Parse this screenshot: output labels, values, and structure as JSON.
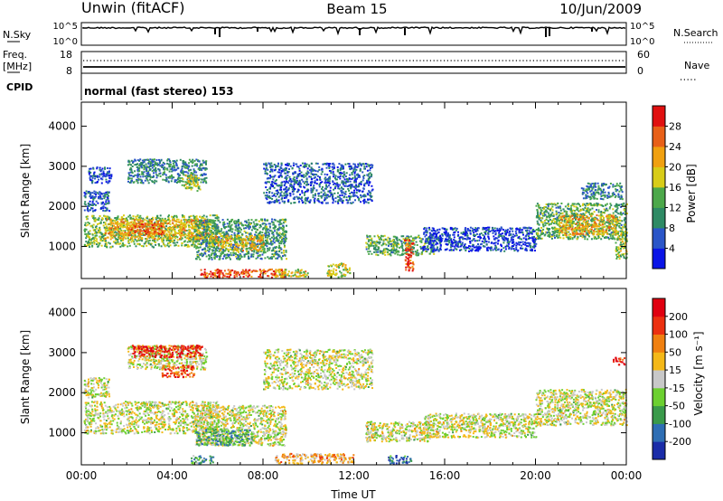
{
  "header": {
    "station": "Unwin (fitACF)",
    "beam": "Beam 15",
    "date": "10/Jun/2009"
  },
  "top_panels": {
    "nsky_label": "N.Sky",
    "nsky_ticks": [
      "10^5",
      "10^0"
    ],
    "nsearch_label": "N.Search",
    "nsearch_ticks": [
      "10^5",
      "10^0"
    ],
    "freq_label": "Freq.",
    "freq_unit": "[MHz]",
    "freq_ticks": [
      "18",
      "8"
    ],
    "nave_label": "Nave",
    "nave_ticks": [
      "60",
      "0"
    ],
    "cpid_label": "CPID",
    "cpid_text": "normal (fast stereo) 153"
  },
  "chart_data": [
    {
      "type": "heatmap",
      "name": "power-panel",
      "ylabel": "Slant Range [km]",
      "yticks": [
        1000,
        2000,
        3000,
        4000
      ],
      "ylim": [
        200,
        4600
      ],
      "xlim": [
        0,
        24
      ],
      "colorbar": {
        "label": "Power [dB]",
        "ticks": [
          "4",
          "8",
          "12",
          "16",
          "20",
          "24",
          "28"
        ],
        "colors": [
          "#0a14e6",
          "#2a55c8",
          "#2e8a64",
          "#4ca84a",
          "#d8cc18",
          "#f0a010",
          "#e86018",
          "#e01010"
        ]
      },
      "regions": [
        {
          "x": [
            0.1,
            6.0
          ],
          "y": [
            1000,
            1800
          ],
          "level": 0.45
        },
        {
          "x": [
            1.0,
            5.6
          ],
          "y": [
            1200,
            1700
          ],
          "level": 0.65
        },
        {
          "x": [
            2.0,
            3.6
          ],
          "y": [
            1300,
            1600
          ],
          "level": 0.8
        },
        {
          "x": [
            0.1,
            1.2
          ],
          "y": [
            1900,
            2400
          ],
          "level": 0.2
        },
        {
          "x": [
            0.3,
            1.3
          ],
          "y": [
            2600,
            3000
          ],
          "level": 0.15
        },
        {
          "x": [
            2.0,
            5.5
          ],
          "y": [
            2600,
            3200
          ],
          "level": 0.3
        },
        {
          "x": [
            4.4,
            5.2
          ],
          "y": [
            2400,
            2800
          ],
          "level": 0.5
        },
        {
          "x": [
            5.0,
            9.0
          ],
          "y": [
            700,
            1700
          ],
          "level": 0.35
        },
        {
          "x": [
            5.6,
            8.0
          ],
          "y": [
            900,
            1300
          ],
          "level": 0.6
        },
        {
          "x": [
            5.2,
            9.0
          ],
          "y": [
            250,
            450
          ],
          "level": 0.85
        },
        {
          "x": [
            8.5,
            10.0
          ],
          "y": [
            250,
            450
          ],
          "level": 0.6
        },
        {
          "x": [
            10.8,
            11.8
          ],
          "y": [
            250,
            600
          ],
          "level": 0.55
        },
        {
          "x": [
            8.0,
            12.8
          ],
          "y": [
            2100,
            3100
          ],
          "level": 0.2
        },
        {
          "x": [
            12.5,
            15.5
          ],
          "y": [
            800,
            1300
          ],
          "level": 0.4
        },
        {
          "x": [
            14.2,
            14.6
          ],
          "y": [
            400,
            1200
          ],
          "level": 0.85
        },
        {
          "x": [
            15.0,
            20.0
          ],
          "y": [
            900,
            1500
          ],
          "level": 0.15
        },
        {
          "x": [
            20.0,
            24.0
          ],
          "y": [
            1200,
            2100
          ],
          "level": 0.4
        },
        {
          "x": [
            21.0,
            23.6
          ],
          "y": [
            1300,
            1800
          ],
          "level": 0.65
        },
        {
          "x": [
            22.0,
            23.8
          ],
          "y": [
            2200,
            2600
          ],
          "level": 0.3
        },
        {
          "x": [
            23.5,
            24.0
          ],
          "y": [
            700,
            1400
          ],
          "level": 0.5
        }
      ]
    },
    {
      "type": "heatmap",
      "name": "velocity-panel",
      "ylabel": "Slant Range [km]",
      "yticks": [
        1000,
        2000,
        3000,
        4000
      ],
      "ylim": [
        200,
        4600
      ],
      "xlim": [
        0,
        24
      ],
      "xticks": [
        "00:00",
        "04:00",
        "08:00",
        "12:00",
        "16:00",
        "20:00",
        "00:00"
      ],
      "xlabel": "Time UT",
      "colorbar": {
        "label": "Velocity [m s⁻¹]",
        "ticks": [
          "200",
          "100",
          "50",
          "15",
          "-15",
          "-50",
          "-100",
          "-200"
        ],
        "colors": [
          "#1a2ca8",
          "#2e6eb4",
          "#3a9a4a",
          "#6cd030",
          "#c8c8c8",
          "#f4b818",
          "#f08010",
          "#ec3010",
          "#e00010"
        ]
      },
      "regions": [
        {
          "x": [
            0.1,
            6.0
          ],
          "y": [
            1000,
            1800
          ],
          "level": 0.5
        },
        {
          "x": [
            0.1,
            1.2
          ],
          "y": [
            1900,
            2400
          ],
          "level": 0.5
        },
        {
          "x": [
            2.0,
            5.5
          ],
          "y": [
            2600,
            3200
          ],
          "level": 0.5
        },
        {
          "x": [
            2.2,
            5.3
          ],
          "y": [
            2900,
            3200
          ],
          "level": 0.9
        },
        {
          "x": [
            3.5,
            5.0
          ],
          "y": [
            2400,
            2700
          ],
          "level": 0.8
        },
        {
          "x": [
            5.0,
            9.0
          ],
          "y": [
            700,
            1700
          ],
          "level": 0.5
        },
        {
          "x": [
            5.0,
            7.5
          ],
          "y": [
            700,
            1100
          ],
          "level": 0.3
        },
        {
          "x": [
            4.8,
            5.8
          ],
          "y": [
            250,
            450
          ],
          "level": 0.3
        },
        {
          "x": [
            8.5,
            12.0
          ],
          "y": [
            250,
            500
          ],
          "level": 0.65
        },
        {
          "x": [
            13.5,
            14.5
          ],
          "y": [
            250,
            450
          ],
          "level": 0.2
        },
        {
          "x": [
            8.0,
            12.8
          ],
          "y": [
            2100,
            3100
          ],
          "level": 0.5
        },
        {
          "x": [
            12.5,
            15.5
          ],
          "y": [
            800,
            1300
          ],
          "level": 0.5
        },
        {
          "x": [
            15.0,
            20.0
          ],
          "y": [
            900,
            1500
          ],
          "level": 0.5
        },
        {
          "x": [
            20.0,
            24.0
          ],
          "y": [
            1200,
            2100
          ],
          "level": 0.5
        },
        {
          "x": [
            23.4,
            23.9
          ],
          "y": [
            2700,
            2900
          ],
          "level": 0.9
        }
      ]
    }
  ]
}
